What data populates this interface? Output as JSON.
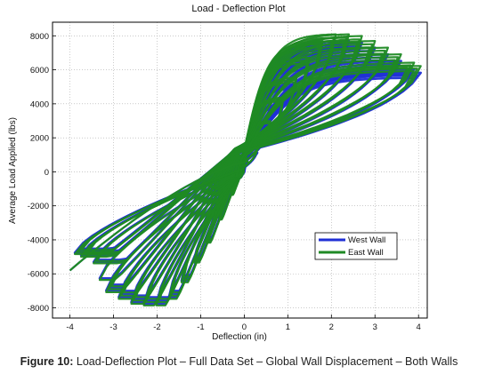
{
  "chart_data": {
    "type": "line",
    "title": "Load - Deflection Plot",
    "xlabel": "Deflection (in)",
    "ylabel": "Average Load Applied (lbs)",
    "xlim": [
      -4.4,
      4.2
    ],
    "ylim": [
      -8600,
      8800
    ],
    "x_ticks": [
      -4,
      -3,
      -2,
      -1,
      0,
      1,
      2,
      3,
      4
    ],
    "y_ticks": [
      -8000,
      -6000,
      -4000,
      -2000,
      0,
      2000,
      4000,
      6000,
      8000
    ],
    "grid": true,
    "legend_position": "lower-right",
    "series": [
      {
        "name": "West Wall",
        "color": "#1f2fd6",
        "cycle_peaks": [
          {
            "dx": 0.3,
            "dy": 1300
          },
          {
            "dx": 0.6,
            "dy": 2800
          },
          {
            "dx": 0.9,
            "dy": 4200
          },
          {
            "dx": 1.2,
            "dy": 5400
          },
          {
            "dx": 1.5,
            "dy": 6600
          },
          {
            "dx": 1.8,
            "dy": 7600
          },
          {
            "dx": 2.1,
            "dy": 8000
          },
          {
            "dx": 2.4,
            "dy": 8000
          },
          {
            "dx": 2.7,
            "dy": 7900
          },
          {
            "dx": 3.0,
            "dy": 7600
          },
          {
            "dx": 3.3,
            "dy": 7200
          },
          {
            "dx": 3.6,
            "dy": 6800
          },
          {
            "dx": 3.9,
            "dy": 6300
          },
          {
            "dx": 4.05,
            "dy": 6100
          }
        ]
      },
      {
        "name": "East Wall",
        "color": "#1f8a24",
        "cycle_peaks": [
          {
            "dx": 0.3,
            "dy": 1400
          },
          {
            "dx": 0.6,
            "dy": 2900
          },
          {
            "dx": 0.9,
            "dy": 4300
          },
          {
            "dx": 1.2,
            "dy": 5500
          },
          {
            "dx": 1.5,
            "dy": 6700
          },
          {
            "dx": 1.8,
            "dy": 7700
          },
          {
            "dx": 2.1,
            "dy": 8100
          },
          {
            "dx": 2.4,
            "dy": 8100
          },
          {
            "dx": 2.7,
            "dy": 8000
          },
          {
            "dx": 3.0,
            "dy": 7700
          },
          {
            "dx": 3.3,
            "dy": 7300
          },
          {
            "dx": 3.6,
            "dy": 6900
          },
          {
            "dx": 3.9,
            "dy": 6400
          },
          {
            "dx": 4.05,
            "dy": 6200
          }
        ]
      }
    ],
    "negative_envelope_end": {
      "x": -4.0,
      "y": -5800
    }
  },
  "caption": {
    "label": "Figure 10:",
    "text": " Load-Deflection Plot – Full Data Set – Global Wall Displacement – Both Walls"
  }
}
